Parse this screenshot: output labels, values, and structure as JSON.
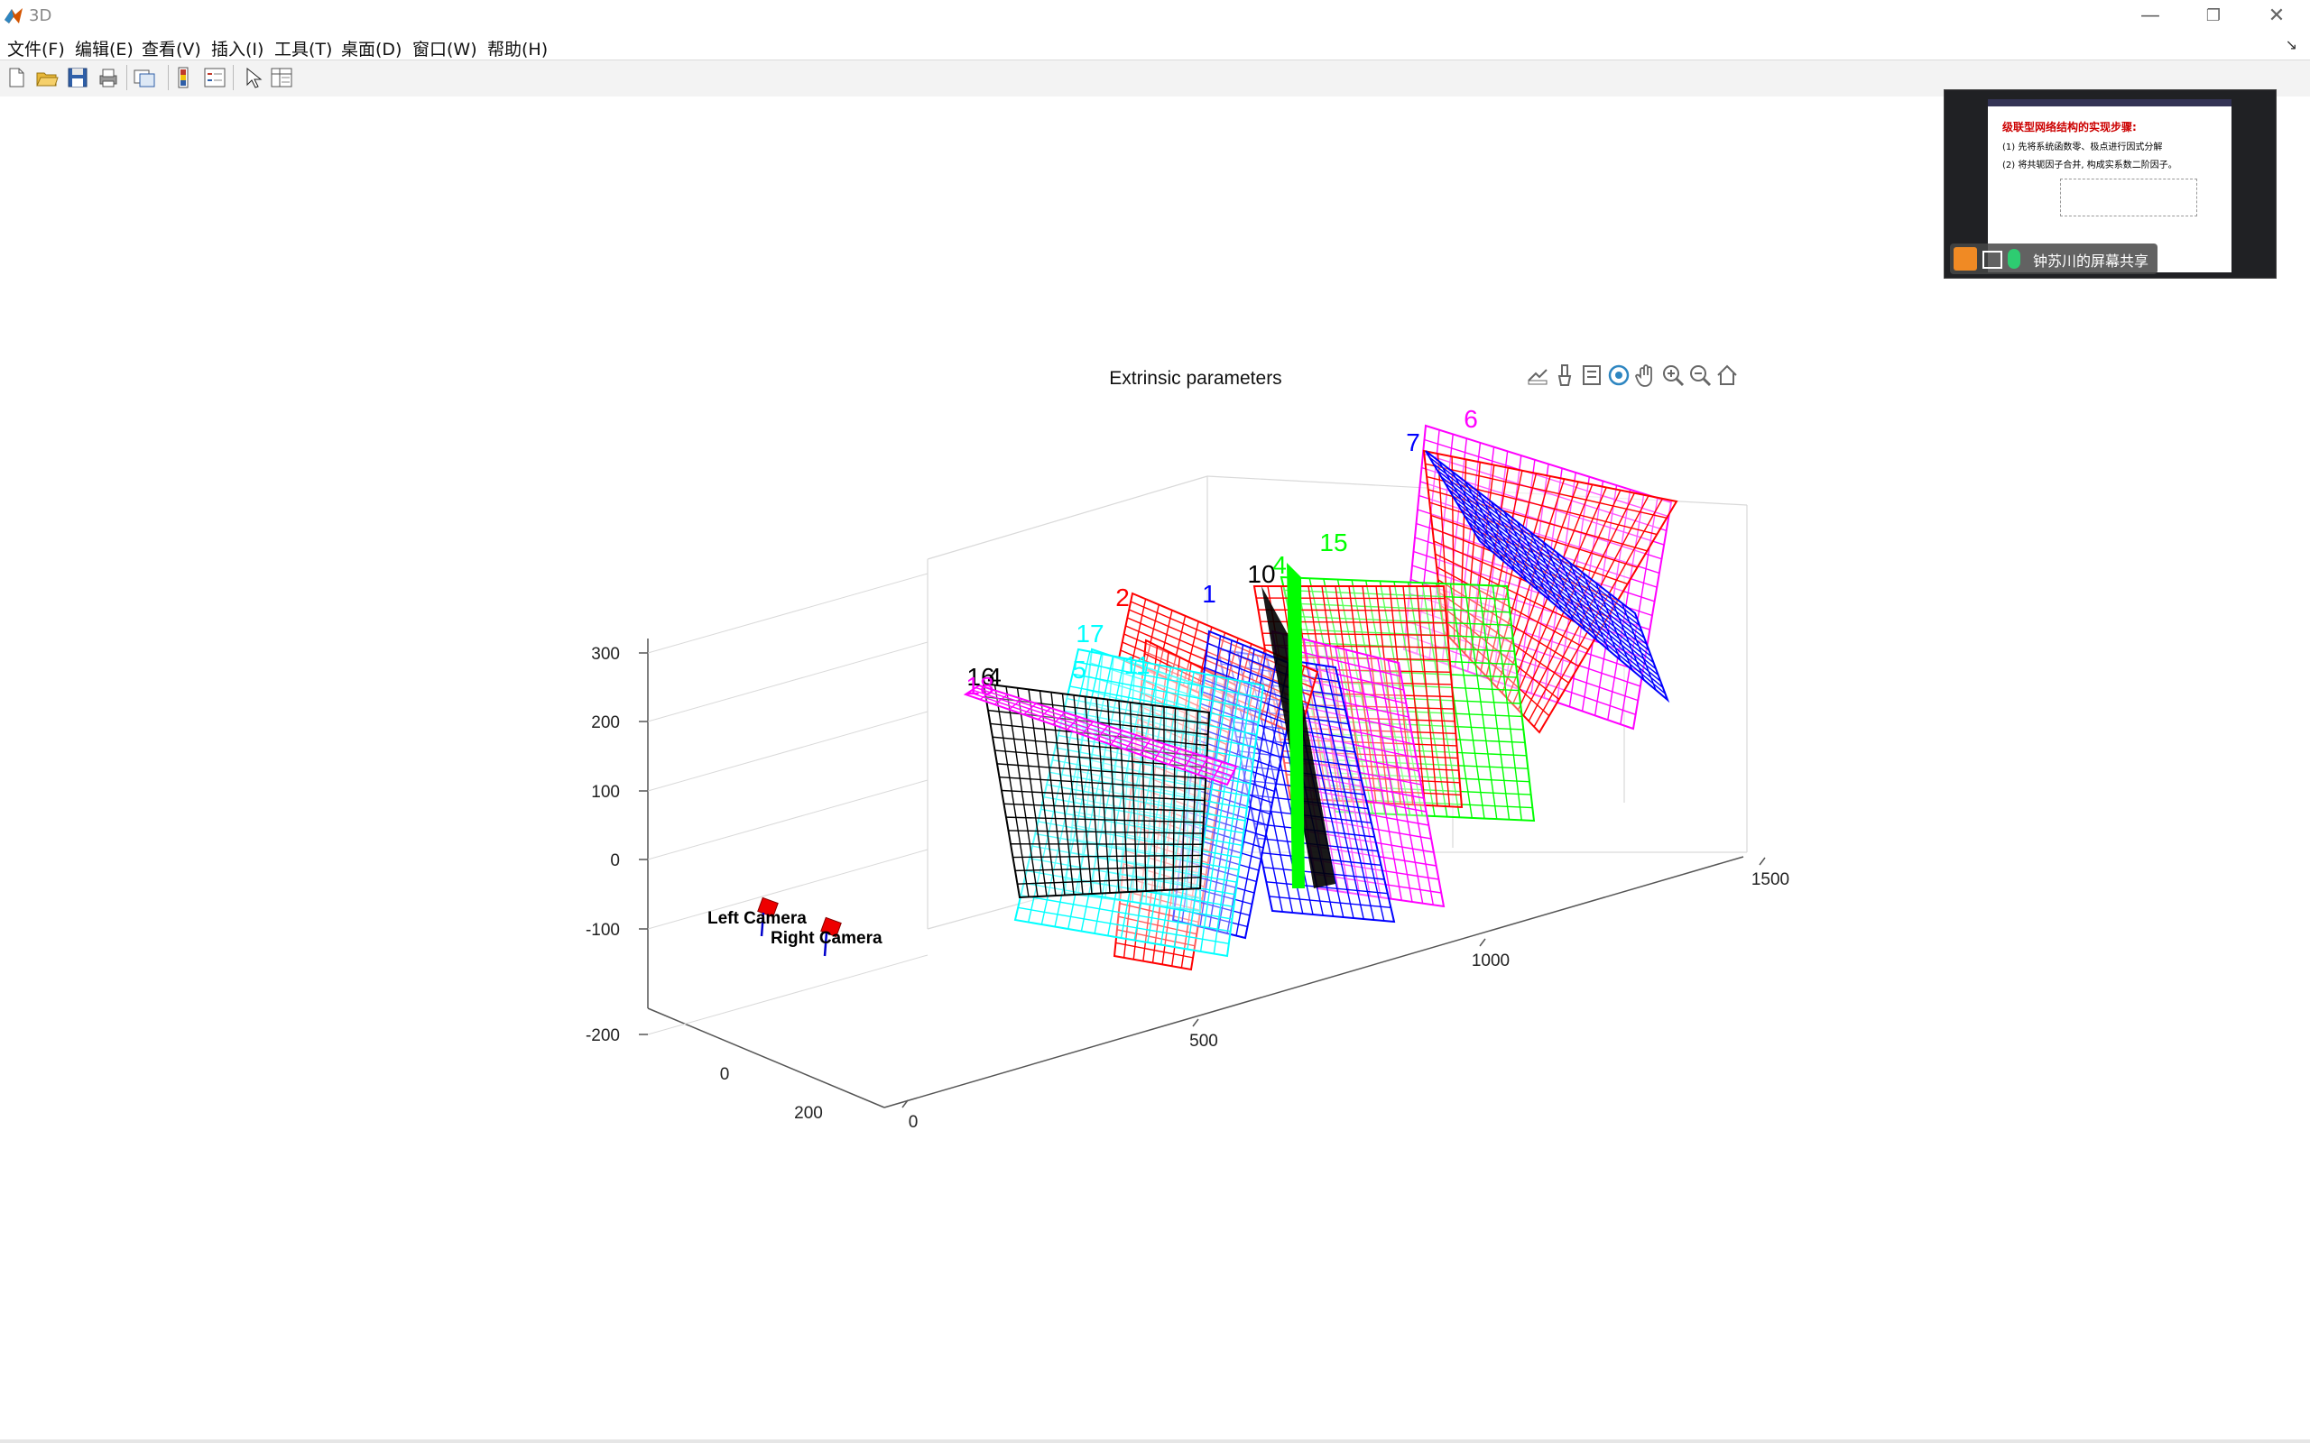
{
  "window": {
    "title": "3D",
    "minimize": "—",
    "restore": "❐",
    "close": "✕"
  },
  "menu": [
    "文件(F)",
    "编辑(E)",
    "查看(V)",
    "插入(I)",
    "工具(T)",
    "桌面(D)",
    "窗口(W)",
    "帮助(H)"
  ],
  "toolbar": {
    "icons": [
      "new-figure-icon",
      "open-file-icon",
      "save-icon",
      "print-icon",
      "link-plot-icon",
      "colorbar-icon",
      "legend-icon",
      "select-arrow-icon",
      "property-inspector-icon"
    ]
  },
  "axes_toolbar": {
    "icons": [
      "export-icon",
      "brush-icon",
      "data-tip-icon",
      "rotate-3d-icon",
      "pan-icon",
      "zoom-in-icon",
      "zoom-out-icon",
      "home-icon"
    ]
  },
  "chart_data": {
    "type": "3d-planes",
    "title": "Extrinsic parameters",
    "z_ticks": [
      "300",
      "200",
      "100",
      "0",
      "-100",
      "-200"
    ],
    "x_ticks": [
      "0",
      "500",
      "1000",
      "1500"
    ],
    "y_ticks": [
      "0",
      "200"
    ],
    "camera_labels": [
      "Left Camera",
      "Right Camera"
    ],
    "planes": [
      {
        "label": "16",
        "color": "#000000"
      },
      {
        "label": "4",
        "color": "#000000"
      },
      {
        "label": "18",
        "color": "#ff00ff"
      },
      {
        "label": "17",
        "color": "#00ffff"
      },
      {
        "label": "5",
        "color": "#00ffff"
      },
      {
        "label": "11",
        "color": "#00ffff"
      },
      {
        "label": "2",
        "color": "#ff0000"
      },
      {
        "label": "1",
        "color": "#0000ff"
      },
      {
        "label": "10",
        "color": "#000000"
      },
      {
        "label": "4",
        "color": "#00ff00"
      },
      {
        "label": "15",
        "color": "#00ff00"
      },
      {
        "label": "7",
        "color": "#0000ff"
      },
      {
        "label": "6",
        "color": "#ff00ff"
      }
    ]
  },
  "overlay": {
    "share_text": "钟苏川的屏幕共享",
    "slide_heading": "级联型网络结构的实现步骤:",
    "slide_line1": "(1) 先将系统函数零、极点进行因式分解",
    "slide_line2": "(2) 将共轭因子合并, 构成实系数二阶因子。"
  }
}
